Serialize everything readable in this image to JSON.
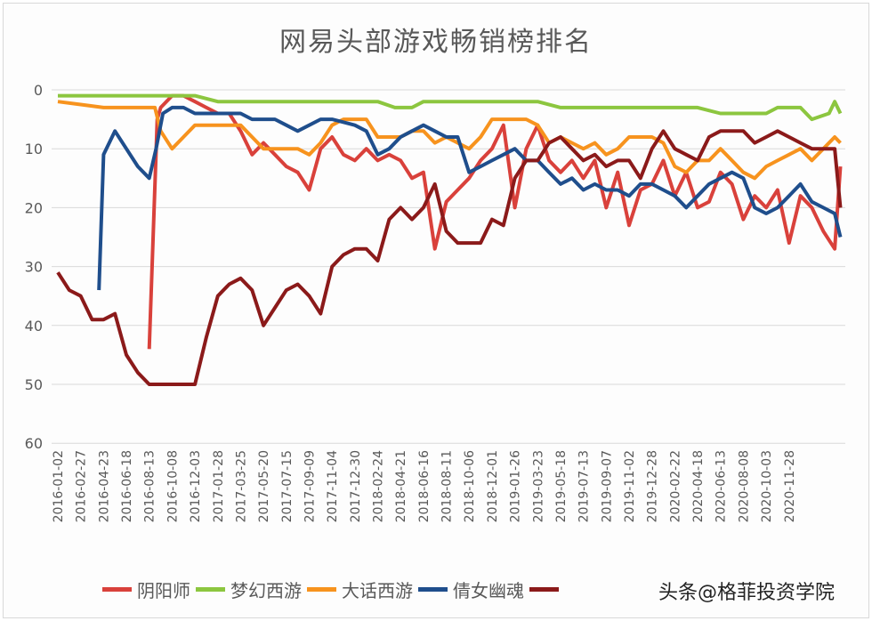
{
  "chart_data": {
    "type": "line",
    "title": "网易头部游戏畅销榜排名",
    "xlabel": "",
    "ylabel": "",
    "x_unit": "weeks since 2016-01-02",
    "ylim": [
      60,
      0
    ],
    "y_inverted": true,
    "y_ticks": [
      "0",
      "10",
      "20",
      "30",
      "40",
      "50",
      "60"
    ],
    "grid": true,
    "legend_position": "bottom",
    "x_tick_labels": [
      "2016-01-02",
      "2016-02-27",
      "2016-04-23",
      "2016-06-18",
      "2016-08-13",
      "2016-10-08",
      "2016-12-03",
      "2017-01-28",
      "2017-03-25",
      "2017-05-20",
      "2017-07-15",
      "2017-09-09",
      "2017-11-04",
      "2017-12-30",
      "2018-02-24",
      "2018-04-21",
      "2018-06-16",
      "2018-08-11",
      "2018-10-06",
      "2018-12-01",
      "2019-01-26",
      "2019-03-23",
      "2019-05-18",
      "2019-07-13",
      "2019-09-07",
      "2019-11-02",
      "2019-12-28",
      "2020-02-22",
      "2020-04-18",
      "2020-06-13",
      "2020-08-08",
      "2020-10-03",
      "2020-11-28"
    ],
    "series": [
      {
        "name": "阴阳师",
        "color": "#d9413b",
        "points": [
          [
            32,
            44
          ],
          [
            34.8,
            5
          ],
          [
            36,
            3
          ],
          [
            40,
            1
          ],
          [
            44,
            1
          ],
          [
            48,
            2
          ],
          [
            52,
            3
          ],
          [
            56,
            4
          ],
          [
            60,
            4
          ],
          [
            64,
            7
          ],
          [
            68,
            11
          ],
          [
            72,
            9
          ],
          [
            76,
            11
          ],
          [
            80,
            13
          ],
          [
            84,
            14
          ],
          [
            88,
            17
          ],
          [
            92,
            10
          ],
          [
            96,
            8
          ],
          [
            100,
            11
          ],
          [
            104,
            12
          ],
          [
            108,
            10
          ],
          [
            112,
            12
          ],
          [
            116,
            11
          ],
          [
            120,
            12
          ],
          [
            124,
            15
          ],
          [
            128,
            14
          ],
          [
            132,
            27
          ],
          [
            136,
            19
          ],
          [
            140,
            17
          ],
          [
            144,
            15
          ],
          [
            148,
            12
          ],
          [
            152,
            10
          ],
          [
            156,
            6
          ],
          [
            160,
            20
          ],
          [
            164,
            10
          ],
          [
            168,
            6
          ],
          [
            172,
            12
          ],
          [
            176,
            14
          ],
          [
            180,
            12
          ],
          [
            184,
            15
          ],
          [
            188,
            12
          ],
          [
            192,
            20
          ],
          [
            196,
            14
          ],
          [
            200,
            23
          ],
          [
            204,
            17
          ],
          [
            208,
            16
          ],
          [
            212,
            12
          ],
          [
            216,
            18
          ],
          [
            220,
            14
          ],
          [
            224,
            20
          ],
          [
            228,
            19
          ],
          [
            232,
            14
          ],
          [
            236,
            16
          ],
          [
            240,
            22
          ],
          [
            244,
            18
          ],
          [
            248,
            20
          ],
          [
            252,
            17
          ],
          [
            256,
            26
          ],
          [
            260,
            18
          ],
          [
            264,
            20
          ],
          [
            268,
            24
          ],
          [
            272,
            27
          ],
          [
            274,
            13
          ]
        ]
      },
      {
        "name": "梦幻西游",
        "color": "#8cc63f",
        "points": [
          [
            0,
            1
          ],
          [
            48,
            1
          ],
          [
            56,
            2
          ],
          [
            112,
            2
          ],
          [
            118,
            3
          ],
          [
            124,
            3
          ],
          [
            128,
            2
          ],
          [
            168,
            2
          ],
          [
            176,
            3
          ],
          [
            200,
            3
          ],
          [
            212,
            3
          ],
          [
            224,
            3
          ],
          [
            232,
            4
          ],
          [
            248,
            4
          ],
          [
            252,
            3
          ],
          [
            260,
            3
          ],
          [
            264,
            5
          ],
          [
            270,
            4
          ],
          [
            272,
            2
          ],
          [
            274,
            4
          ]
        ]
      },
      {
        "name": "大话西游",
        "color": "#f7931e",
        "points": [
          [
            0,
            2
          ],
          [
            8,
            2.5
          ],
          [
            16,
            3
          ],
          [
            24,
            3
          ],
          [
            34,
            3
          ],
          [
            36,
            7
          ],
          [
            40,
            10
          ],
          [
            44,
            8
          ],
          [
            48,
            6
          ],
          [
            56,
            6
          ],
          [
            64,
            6
          ],
          [
            68,
            8
          ],
          [
            72,
            10
          ],
          [
            80,
            10
          ],
          [
            84,
            10
          ],
          [
            88,
            11
          ],
          [
            92,
            9
          ],
          [
            96,
            6
          ],
          [
            100,
            5
          ],
          [
            104,
            5
          ],
          [
            108,
            5
          ],
          [
            112,
            8
          ],
          [
            116,
            8
          ],
          [
            120,
            8
          ],
          [
            124,
            7
          ],
          [
            128,
            7
          ],
          [
            132,
            9
          ],
          [
            136,
            8
          ],
          [
            140,
            9
          ],
          [
            144,
            10
          ],
          [
            148,
            8
          ],
          [
            152,
            5
          ],
          [
            156,
            5
          ],
          [
            160,
            5
          ],
          [
            164,
            5
          ],
          [
            168,
            6
          ],
          [
            172,
            9
          ],
          [
            176,
            8
          ],
          [
            180,
            9
          ],
          [
            184,
            10
          ],
          [
            188,
            9
          ],
          [
            192,
            11
          ],
          [
            196,
            10
          ],
          [
            200,
            8
          ],
          [
            204,
            8
          ],
          [
            208,
            8
          ],
          [
            212,
            9
          ],
          [
            216,
            13
          ],
          [
            220,
            14
          ],
          [
            224,
            12
          ],
          [
            228,
            12
          ],
          [
            232,
            10
          ],
          [
            236,
            12
          ],
          [
            240,
            14
          ],
          [
            244,
            15
          ],
          [
            248,
            13
          ],
          [
            252,
            12
          ],
          [
            256,
            11
          ],
          [
            260,
            10
          ],
          [
            264,
            12
          ],
          [
            268,
            10
          ],
          [
            272,
            8
          ],
          [
            274,
            9
          ]
        ]
      },
      {
        "name": "倩女幽魂",
        "color": "#1f4e8c",
        "points": [
          [
            14.4,
            34
          ],
          [
            16,
            11
          ],
          [
            20,
            7
          ],
          [
            24,
            10
          ],
          [
            28,
            13
          ],
          [
            32,
            15
          ],
          [
            34.4,
            10
          ],
          [
            36.8,
            4
          ],
          [
            40,
            3
          ],
          [
            44,
            3
          ],
          [
            48,
            4
          ],
          [
            52,
            4
          ],
          [
            56,
            4
          ],
          [
            64,
            4
          ],
          [
            68,
            5
          ],
          [
            72,
            5
          ],
          [
            76,
            5
          ],
          [
            80,
            6
          ],
          [
            84,
            7
          ],
          [
            88,
            6
          ],
          [
            92,
            5
          ],
          [
            96,
            5
          ],
          [
            104,
            6
          ],
          [
            108,
            7
          ],
          [
            112,
            11
          ],
          [
            116,
            10
          ],
          [
            120,
            8
          ],
          [
            124,
            7
          ],
          [
            128,
            6
          ],
          [
            132,
            7
          ],
          [
            136,
            8
          ],
          [
            140,
            8
          ],
          [
            144,
            14
          ],
          [
            148,
            13
          ],
          [
            152,
            12
          ],
          [
            156,
            11
          ],
          [
            160,
            10
          ],
          [
            164,
            12
          ],
          [
            168,
            12
          ],
          [
            172,
            14
          ],
          [
            176,
            16
          ],
          [
            180,
            15
          ],
          [
            184,
            17
          ],
          [
            188,
            16
          ],
          [
            192,
            17
          ],
          [
            196,
            17
          ],
          [
            200,
            18
          ],
          [
            204,
            16
          ],
          [
            208,
            16
          ],
          [
            212,
            17
          ],
          [
            216,
            18
          ],
          [
            220,
            20
          ],
          [
            224,
            18
          ],
          [
            228,
            16
          ],
          [
            232,
            15
          ],
          [
            236,
            14
          ],
          [
            240,
            15
          ],
          [
            244,
            20
          ],
          [
            248,
            21
          ],
          [
            252,
            20
          ],
          [
            256,
            18
          ],
          [
            260,
            16
          ],
          [
            264,
            19
          ],
          [
            268,
            20
          ],
          [
            272,
            21
          ],
          [
            274,
            25
          ]
        ]
      },
      {
        "name": "",
        "color": "#8b1a1a",
        "points": [
          [
            0,
            31
          ],
          [
            4,
            34
          ],
          [
            8,
            35
          ],
          [
            12,
            39
          ],
          [
            16,
            39
          ],
          [
            20,
            38
          ],
          [
            24,
            45
          ],
          [
            28,
            48
          ],
          [
            32,
            50
          ],
          [
            40,
            50
          ],
          [
            44,
            50
          ],
          [
            48,
            50
          ],
          [
            52,
            42
          ],
          [
            56,
            35
          ],
          [
            60,
            33
          ],
          [
            64,
            32
          ],
          [
            68,
            34
          ],
          [
            72,
            40
          ],
          [
            76,
            37
          ],
          [
            80,
            34
          ],
          [
            84,
            33
          ],
          [
            88,
            35
          ],
          [
            92,
            38
          ],
          [
            96,
            30
          ],
          [
            100,
            28
          ],
          [
            104,
            27
          ],
          [
            108,
            27
          ],
          [
            112,
            29
          ],
          [
            116,
            22
          ],
          [
            120,
            20
          ],
          [
            124,
            22
          ],
          [
            128,
            20
          ],
          [
            132,
            16
          ],
          [
            136,
            24
          ],
          [
            140,
            26
          ],
          [
            144,
            26
          ],
          [
            148,
            26
          ],
          [
            152,
            22
          ],
          [
            156,
            23
          ],
          [
            160,
            15
          ],
          [
            164,
            12
          ],
          [
            168,
            12
          ],
          [
            172,
            9
          ],
          [
            176,
            8
          ],
          [
            180,
            10
          ],
          [
            184,
            12
          ],
          [
            188,
            11
          ],
          [
            192,
            13
          ],
          [
            196,
            12
          ],
          [
            200,
            12
          ],
          [
            204,
            15
          ],
          [
            208,
            10
          ],
          [
            212,
            7
          ],
          [
            216,
            10
          ],
          [
            220,
            11
          ],
          [
            224,
            12
          ],
          [
            228,
            8
          ],
          [
            232,
            7
          ],
          [
            236,
            7
          ],
          [
            240,
            7
          ],
          [
            244,
            9
          ],
          [
            248,
            8
          ],
          [
            252,
            7
          ],
          [
            256,
            8
          ],
          [
            260,
            9
          ],
          [
            264,
            10
          ],
          [
            268,
            10
          ],
          [
            272,
            10
          ],
          [
            274,
            20
          ]
        ]
      }
    ]
  },
  "legend": [
    "阴阳师",
    "梦幻西游",
    "大话西游",
    "倩女幽魂"
  ],
  "watermark": "头条@格菲投资学院"
}
